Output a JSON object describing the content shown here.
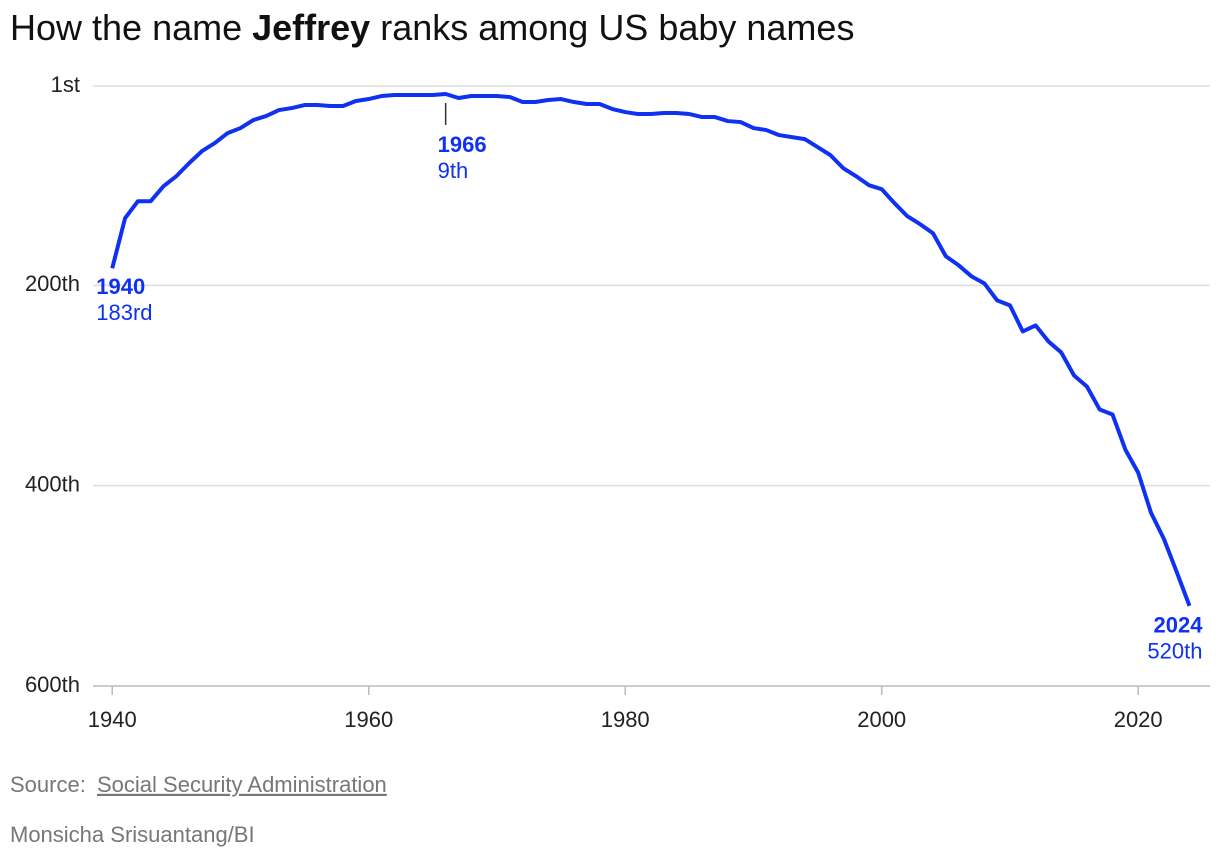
{
  "chart_data": {
    "type": "line",
    "title_parts": [
      "How the name",
      "Jeffrey",
      "ranks among US baby names"
    ],
    "x": [
      1940,
      1941,
      1942,
      1943,
      1944,
      1945,
      1946,
      1947,
      1948,
      1949,
      1950,
      1951,
      1952,
      1953,
      1954,
      1955,
      1956,
      1957,
      1958,
      1959,
      1960,
      1961,
      1962,
      1963,
      1964,
      1965,
      1966,
      1967,
      1968,
      1969,
      1970,
      1971,
      1972,
      1973,
      1974,
      1975,
      1976,
      1977,
      1978,
      1979,
      1980,
      1981,
      1982,
      1983,
      1984,
      1985,
      1986,
      1987,
      1988,
      1989,
      1990,
      1991,
      1992,
      1993,
      1994,
      1995,
      1996,
      1997,
      1998,
      1999,
      2000,
      2001,
      2002,
      2003,
      2004,
      2005,
      2006,
      2007,
      2008,
      2009,
      2010,
      2011,
      2012,
      2013,
      2014,
      2015,
      2016,
      2017,
      2018,
      2019,
      2020,
      2021,
      2022,
      2023,
      2024
    ],
    "values": [
      183,
      133,
      116,
      116,
      101,
      91,
      78,
      66,
      58,
      48,
      43,
      35,
      31,
      25,
      23,
      20,
      20,
      21,
      21,
      16,
      14,
      11,
      10,
      10,
      10,
      10,
      9,
      13,
      11,
      11,
      11,
      12,
      17,
      17,
      15,
      14,
      17,
      19,
      19,
      24,
      27,
      29,
      29,
      28,
      28,
      29,
      32,
      32,
      36,
      37,
      43,
      45,
      50,
      52,
      54,
      62,
      70,
      83,
      91,
      100,
      104,
      118,
      131,
      139,
      148,
      171,
      180,
      191,
      198,
      215,
      220,
      246,
      240,
      256,
      267,
      290,
      301,
      324,
      329,
      364,
      387,
      427,
      453,
      486,
      520
    ],
    "color": "#0f32f0",
    "xlim": [
      1938.5,
      2025.6
    ],
    "xticks": [
      1940,
      1960,
      1980,
      2000,
      2020
    ],
    "ylim": [
      1,
      600
    ],
    "y_inverted": true,
    "yticks": [
      {
        "value": 1,
        "label": "1st"
      },
      {
        "value": 200,
        "label": "200th"
      },
      {
        "value": 400,
        "label": "400th"
      },
      {
        "value": 600,
        "label": "600th"
      }
    ],
    "grid": true,
    "annotations": [
      {
        "x": 1940,
        "y": 183,
        "label": "183rd"
      },
      {
        "x": 1966,
        "y": 9,
        "label": "9th"
      },
      {
        "x": 2024,
        "y": 520,
        "label": "520th"
      }
    ],
    "source_prefix": "Source:",
    "source_link": "Social Security Administration",
    "credit": "Monsicha Srisuantang/BI"
  }
}
